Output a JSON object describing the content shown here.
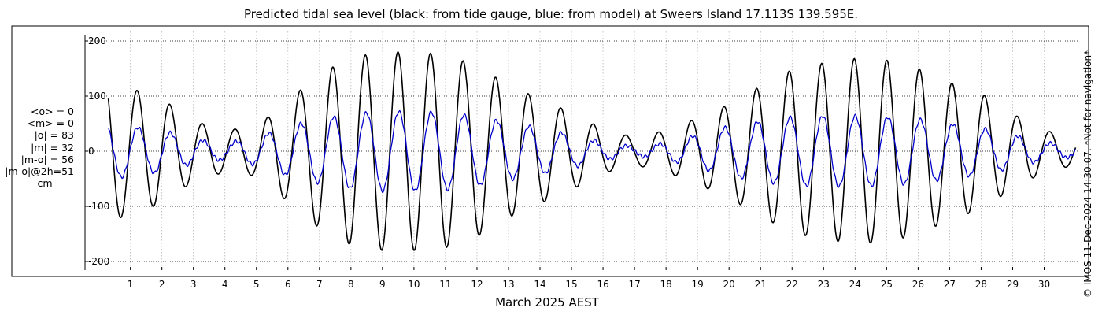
{
  "chart_data": {
    "type": "line",
    "title": "Predicted tidal sea level (black: from tide gauge, blue: from model) at Sweers Island 17.113S 139.595E.",
    "xlabel": "March 2025 AEST",
    "ylabel": "",
    "x_ticks": [
      "1",
      "2",
      "3",
      "4",
      "5",
      "6",
      "7",
      "8",
      "9",
      "10",
      "11",
      "12",
      "13",
      "14",
      "15",
      "16",
      "17",
      "18",
      "19",
      "20",
      "21",
      "22",
      "23",
      "24",
      "25",
      "26",
      "27",
      "28",
      "29",
      "30"
    ],
    "y_ticks": [
      "200",
      "100",
      "0",
      "-100",
      "-200"
    ],
    "ylim": [
      -225,
      225
    ],
    "xlim_days": [
      0.3,
      31.0
    ],
    "grid": true,
    "series": [
      {
        "name": "black",
        "color": "#000000",
        "amplitude_by_day": [
          [
            0.3,
            128
          ],
          [
            2,
            95
          ],
          [
            3,
            55
          ],
          [
            4,
            38
          ],
          [
            5,
            45
          ],
          [
            6,
            92
          ],
          [
            7,
            140
          ],
          [
            8,
            170
          ],
          [
            9,
            180
          ],
          [
            10,
            180
          ],
          [
            11,
            175
          ],
          [
            12,
            155
          ],
          [
            13,
            120
          ],
          [
            14,
            95
          ],
          [
            15,
            70
          ],
          [
            16,
            40
          ],
          [
            17,
            25
          ],
          [
            18,
            38
          ],
          [
            19,
            60
          ],
          [
            20,
            85
          ],
          [
            21,
            118
          ],
          [
            22,
            148
          ],
          [
            23,
            160
          ],
          [
            24,
            168
          ],
          [
            25,
            165
          ],
          [
            26,
            150
          ],
          [
            27,
            125
          ],
          [
            28,
            105
          ],
          [
            29,
            68
          ],
          [
            30,
            38
          ],
          [
            31,
            25
          ]
        ]
      },
      {
        "name": "blue",
        "color": "#0000cc",
        "amplitude_by_day": [
          [
            0.3,
            50
          ],
          [
            2,
            38
          ],
          [
            3,
            22
          ],
          [
            4,
            15
          ],
          [
            5,
            25
          ],
          [
            6,
            45
          ],
          [
            7,
            58
          ],
          [
            8,
            68
          ],
          [
            9,
            72
          ],
          [
            10,
            72
          ],
          [
            11,
            70
          ],
          [
            12,
            63
          ],
          [
            13,
            52
          ],
          [
            14,
            42
          ],
          [
            15,
            30
          ],
          [
            16,
            16
          ],
          [
            17,
            8
          ],
          [
            18,
            15
          ],
          [
            19,
            30
          ],
          [
            20,
            45
          ],
          [
            21,
            55
          ],
          [
            22,
            62
          ],
          [
            23,
            64
          ],
          [
            24,
            64
          ],
          [
            25,
            62
          ],
          [
            26,
            58
          ],
          [
            27,
            50
          ],
          [
            28,
            42
          ],
          [
            29,
            30
          ],
          [
            30,
            16
          ],
          [
            31,
            10
          ]
        ]
      }
    ]
  },
  "stats": {
    "o_mean": "<o> = 0",
    "m_mean": "<m> = 0",
    "o_abs": "|o| = 83",
    "m_abs": "|m| = 32",
    "mo_abs": "|m-o| = 56",
    "mo_2h": "|m-o|@2h=51",
    "unit": "cm"
  },
  "credit": "© IMOS 11-Dec-2024 14:30:07. *Not for navigation*"
}
